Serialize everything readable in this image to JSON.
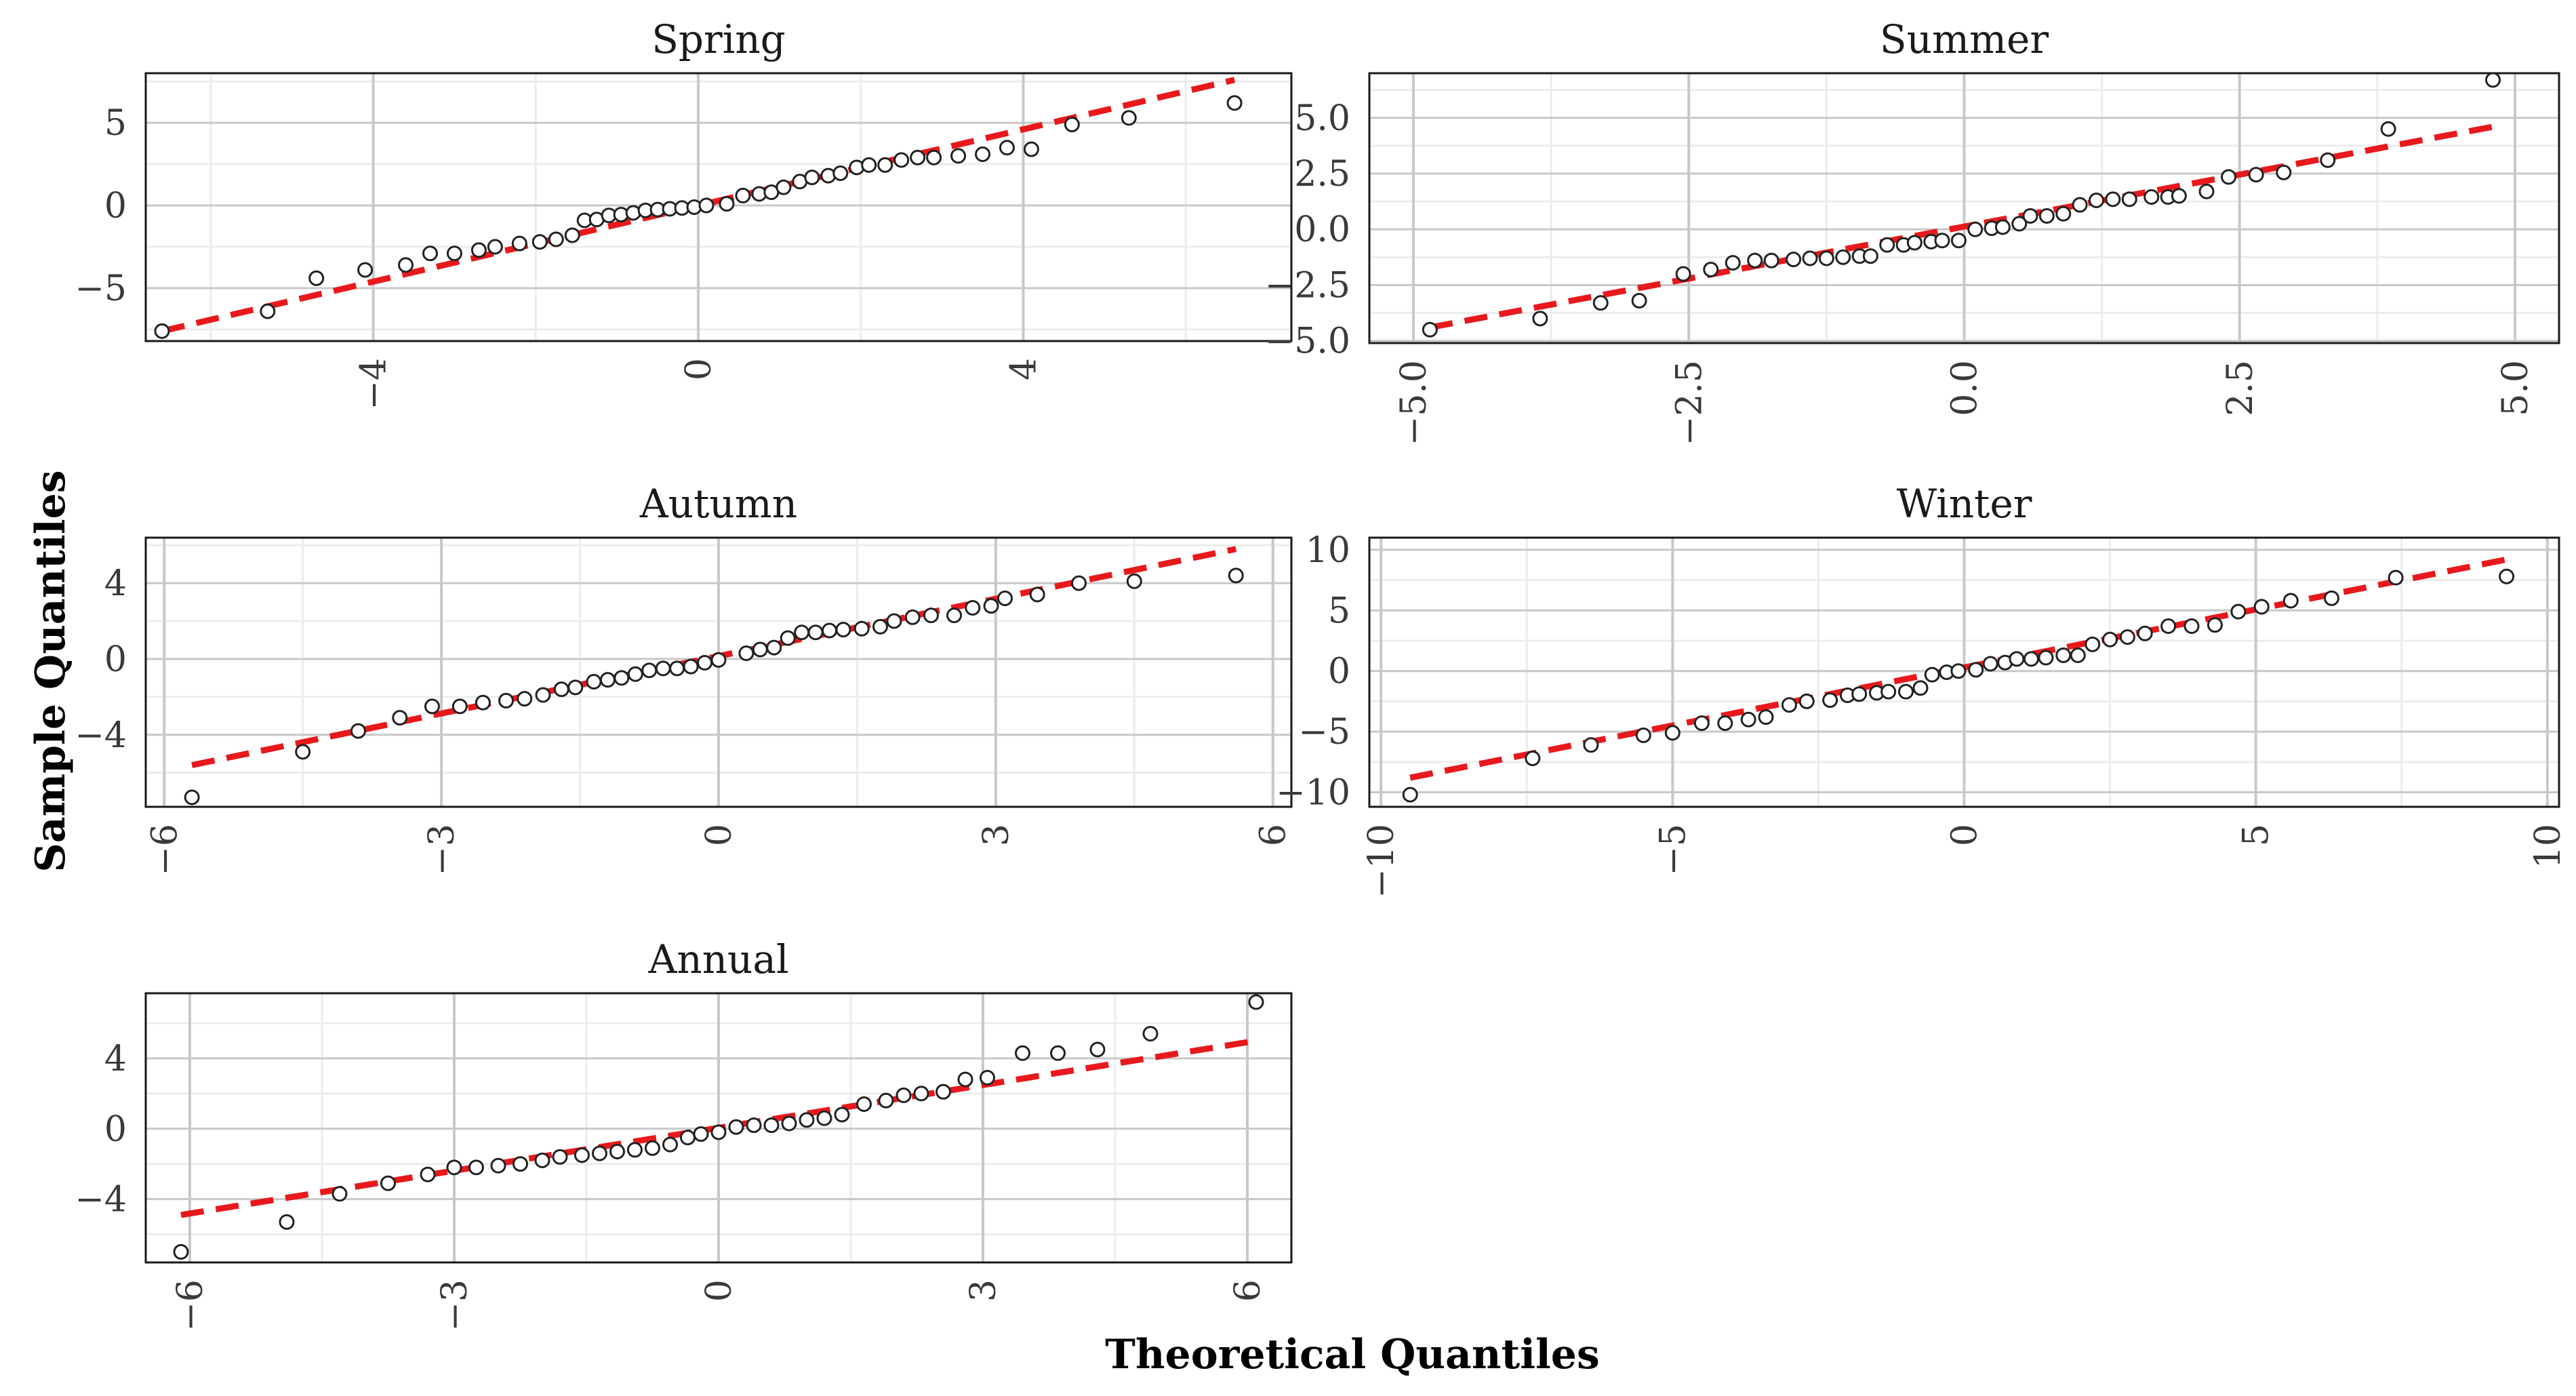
{
  "figure": {
    "ylabel": "Sample Quantiles",
    "xlabel": "Theoretical Quantiles"
  },
  "colors": {
    "ref_line": "#e8191c",
    "point_stroke": "#222222",
    "grid_major": "#c8c8c8",
    "grid_minor": "#ececec",
    "frame": "#1a1a1a"
  },
  "chart_data": [
    {
      "type": "scatter",
      "subtype": "qq-plot",
      "title": "Spring",
      "xlim": [
        -6.8,
        7.3
      ],
      "ylim": [
        -8.2,
        8.0
      ],
      "xticks": [
        -4,
        0,
        4
      ],
      "xtick_labels": [
        "−4",
        "0",
        "4"
      ],
      "yticks": [
        -5,
        0,
        5
      ],
      "ytick_labels": [
        "−5",
        "0",
        "5"
      ],
      "xminor": [
        -6,
        -2,
        2,
        6
      ],
      "yminor": [
        -7.5,
        -2.5,
        2.5,
        7.5
      ],
      "ref_line": [
        [
          -6.6,
          -7.6
        ],
        [
          6.6,
          7.6
        ]
      ],
      "points": [
        [
          -6.6,
          -7.6
        ],
        [
          -5.3,
          -6.4
        ],
        [
          -4.7,
          -4.4
        ],
        [
          -4.1,
          -3.9
        ],
        [
          -3.6,
          -3.6
        ],
        [
          -3.3,
          -2.9
        ],
        [
          -3.0,
          -2.9
        ],
        [
          -2.7,
          -2.7
        ],
        [
          -2.5,
          -2.5
        ],
        [
          -2.2,
          -2.3
        ],
        [
          -1.95,
          -2.2
        ],
        [
          -1.75,
          -2.05
        ],
        [
          -1.55,
          -1.8
        ],
        [
          -1.4,
          -0.9
        ],
        [
          -1.25,
          -0.85
        ],
        [
          -1.1,
          -0.6
        ],
        [
          -0.95,
          -0.55
        ],
        [
          -0.8,
          -0.45
        ],
        [
          -0.65,
          -0.3
        ],
        [
          -0.5,
          -0.25
        ],
        [
          -0.35,
          -0.2
        ],
        [
          -0.2,
          -0.15
        ],
        [
          -0.05,
          -0.1
        ],
        [
          0.1,
          0.0
        ],
        [
          0.35,
          0.1
        ],
        [
          0.55,
          0.6
        ],
        [
          0.75,
          0.7
        ],
        [
          0.9,
          0.8
        ],
        [
          1.05,
          1.1
        ],
        [
          1.25,
          1.45
        ],
        [
          1.4,
          1.7
        ],
        [
          1.6,
          1.8
        ],
        [
          1.75,
          1.95
        ],
        [
          1.95,
          2.3
        ],
        [
          2.1,
          2.45
        ],
        [
          2.3,
          2.45
        ],
        [
          2.5,
          2.75
        ],
        [
          2.7,
          2.9
        ],
        [
          2.9,
          2.9
        ],
        [
          3.2,
          3.0
        ],
        [
          3.5,
          3.1
        ],
        [
          3.8,
          3.5
        ],
        [
          4.1,
          3.4
        ],
        [
          4.6,
          4.9
        ],
        [
          5.3,
          5.3
        ],
        [
          6.6,
          6.2
        ]
      ]
    },
    {
      "type": "scatter",
      "subtype": "qq-plot",
      "title": "Summer",
      "xlim": [
        -5.4,
        5.4
      ],
      "ylim": [
        -5.1,
        7.0
      ],
      "xticks": [
        -5,
        -2.5,
        0,
        2.5,
        5
      ],
      "xtick_labels": [
        "−5.0",
        "−2.5",
        "0.0",
        "2.5",
        "5.0"
      ],
      "yticks": [
        -5,
        -2.5,
        0,
        2.5,
        5
      ],
      "ytick_labels": [
        "−5.0",
        "−2.5",
        "0.0",
        "2.5",
        "5.0"
      ],
      "xminor": [
        -3.75,
        -1.25,
        1.25,
        3.75
      ],
      "yminor": [
        -3.75,
        -1.25,
        1.25,
        3.75,
        6.25
      ],
      "ref_line": [
        [
          -4.85,
          -4.4
        ],
        [
          4.8,
          4.6
        ]
      ],
      "points": [
        [
          -4.85,
          -4.5
        ],
        [
          -3.85,
          -4.0
        ],
        [
          -3.3,
          -3.3
        ],
        [
          -2.95,
          -3.2
        ],
        [
          -2.55,
          -2.0
        ],
        [
          -2.3,
          -1.8
        ],
        [
          -2.1,
          -1.5
        ],
        [
          -1.9,
          -1.4
        ],
        [
          -1.75,
          -1.4
        ],
        [
          -1.55,
          -1.35
        ],
        [
          -1.4,
          -1.3
        ],
        [
          -1.25,
          -1.3
        ],
        [
          -1.1,
          -1.25
        ],
        [
          -0.95,
          -1.2
        ],
        [
          -0.85,
          -1.2
        ],
        [
          -0.7,
          -0.7
        ],
        [
          -0.55,
          -0.7
        ],
        [
          -0.45,
          -0.6
        ],
        [
          -0.3,
          -0.55
        ],
        [
          -0.2,
          -0.5
        ],
        [
          -0.05,
          -0.5
        ],
        [
          0.1,
          0.0
        ],
        [
          0.25,
          0.05
        ],
        [
          0.35,
          0.1
        ],
        [
          0.5,
          0.25
        ],
        [
          0.6,
          0.6
        ],
        [
          0.75,
          0.6
        ],
        [
          0.9,
          0.7
        ],
        [
          1.05,
          1.1
        ],
        [
          1.2,
          1.3
        ],
        [
          1.35,
          1.35
        ],
        [
          1.5,
          1.35
        ],
        [
          1.7,
          1.45
        ],
        [
          1.85,
          1.45
        ],
        [
          1.95,
          1.5
        ],
        [
          2.2,
          1.7
        ],
        [
          2.4,
          2.35
        ],
        [
          2.65,
          2.45
        ],
        [
          2.9,
          2.55
        ],
        [
          3.3,
          3.1
        ],
        [
          3.85,
          4.5
        ],
        [
          4.8,
          6.7
        ]
      ]
    },
    {
      "type": "scatter",
      "subtype": "qq-plot",
      "title": "Autumn",
      "xlim": [
        -6.2,
        6.2
      ],
      "ylim": [
        -7.8,
        6.4
      ],
      "xticks": [
        -6,
        -3,
        0,
        3,
        6
      ],
      "xtick_labels": [
        "−6",
        "−3",
        "0",
        "3",
        "6"
      ],
      "yticks": [
        -4,
        0,
        4
      ],
      "ytick_labels": [
        "−4",
        "0",
        "4"
      ],
      "xminor": [
        -4.5,
        -1.5,
        1.5,
        4.5
      ],
      "yminor": [
        -6,
        -2,
        2,
        6
      ],
      "ref_line": [
        [
          -5.7,
          -5.6
        ],
        [
          5.6,
          5.8
        ]
      ],
      "points": [
        [
          -5.7,
          -7.3
        ],
        [
          -4.5,
          -4.9
        ],
        [
          -3.9,
          -3.8
        ],
        [
          -3.45,
          -3.1
        ],
        [
          -3.1,
          -2.5
        ],
        [
          -2.8,
          -2.5
        ],
        [
          -2.55,
          -2.3
        ],
        [
          -2.3,
          -2.2
        ],
        [
          -2.1,
          -2.1
        ],
        [
          -1.9,
          -1.9
        ],
        [
          -1.7,
          -1.6
        ],
        [
          -1.55,
          -1.5
        ],
        [
          -1.35,
          -1.2
        ],
        [
          -1.2,
          -1.1
        ],
        [
          -1.05,
          -1.0
        ],
        [
          -0.9,
          -0.8
        ],
        [
          -0.75,
          -0.6
        ],
        [
          -0.6,
          -0.5
        ],
        [
          -0.45,
          -0.5
        ],
        [
          -0.3,
          -0.4
        ],
        [
          -0.15,
          -0.2
        ],
        [
          0.0,
          -0.05
        ],
        [
          0.3,
          0.3
        ],
        [
          0.45,
          0.5
        ],
        [
          0.6,
          0.6
        ],
        [
          0.75,
          1.1
        ],
        [
          0.9,
          1.4
        ],
        [
          1.05,
          1.4
        ],
        [
          1.2,
          1.5
        ],
        [
          1.35,
          1.55
        ],
        [
          1.55,
          1.6
        ],
        [
          1.75,
          1.7
        ],
        [
          1.9,
          2.0
        ],
        [
          2.1,
          2.2
        ],
        [
          2.3,
          2.3
        ],
        [
          2.55,
          2.3
        ],
        [
          2.75,
          2.7
        ],
        [
          2.95,
          2.8
        ],
        [
          3.1,
          3.2
        ],
        [
          3.45,
          3.4
        ],
        [
          3.9,
          4.0
        ],
        [
          4.5,
          4.1
        ],
        [
          5.6,
          4.4
        ]
      ]
    },
    {
      "type": "scatter",
      "subtype": "qq-plot",
      "title": "Winter",
      "xlim": [
        -10.2,
        10.2
      ],
      "ylim": [
        -11.2,
        11.0
      ],
      "xticks": [
        -10,
        -5,
        0,
        5,
        10
      ],
      "xtick_labels": [
        "−10",
        "−5",
        "0",
        "5",
        "10"
      ],
      "yticks": [
        -10,
        -5,
        0,
        5,
        10
      ],
      "ytick_labels": [
        "−10",
        "−5",
        "0",
        "5",
        "10"
      ],
      "xminor": [
        -7.5,
        -2.5,
        2.5,
        7.5
      ],
      "yminor": [
        -7.5,
        -2.5,
        2.5,
        7.5
      ],
      "ref_line": [
        [
          -9.5,
          -8.8
        ],
        [
          9.3,
          9.2
        ]
      ],
      "points": [
        [
          -9.5,
          -10.2
        ],
        [
          -7.4,
          -7.2
        ],
        [
          -6.4,
          -6.1
        ],
        [
          -5.5,
          -5.3
        ],
        [
          -5.0,
          -5.1
        ],
        [
          -4.5,
          -4.3
        ],
        [
          -4.1,
          -4.3
        ],
        [
          -3.7,
          -4.0
        ],
        [
          -3.4,
          -3.8
        ],
        [
          -3.0,
          -2.8
        ],
        [
          -2.7,
          -2.5
        ],
        [
          -2.3,
          -2.4
        ],
        [
          -2.0,
          -2.0
        ],
        [
          -1.8,
          -1.9
        ],
        [
          -1.5,
          -1.8
        ],
        [
          -1.3,
          -1.7
        ],
        [
          -1.0,
          -1.7
        ],
        [
          -0.75,
          -1.4
        ],
        [
          -0.55,
          -0.3
        ],
        [
          -0.3,
          -0.1
        ],
        [
          -0.1,
          0.0
        ],
        [
          0.2,
          0.1
        ],
        [
          0.45,
          0.6
        ],
        [
          0.7,
          0.7
        ],
        [
          0.9,
          1.0
        ],
        [
          1.15,
          1.0
        ],
        [
          1.4,
          1.1
        ],
        [
          1.7,
          1.3
        ],
        [
          1.95,
          1.3
        ],
        [
          2.2,
          2.2
        ],
        [
          2.5,
          2.6
        ],
        [
          2.8,
          2.8
        ],
        [
          3.1,
          3.1
        ],
        [
          3.5,
          3.7
        ],
        [
          3.9,
          3.7
        ],
        [
          4.3,
          3.8
        ],
        [
          4.7,
          4.9
        ],
        [
          5.1,
          5.3
        ],
        [
          5.6,
          5.8
        ],
        [
          6.3,
          6.0
        ],
        [
          7.4,
          7.7
        ],
        [
          9.3,
          7.8
        ]
      ]
    },
    {
      "type": "scatter",
      "subtype": "qq-plot",
      "title": "Annual",
      "xlim": [
        -6.5,
        6.5
      ],
      "ylim": [
        -7.6,
        7.7
      ],
      "xticks": [
        -6,
        -3,
        0,
        3,
        6
      ],
      "xtick_labels": [
        "−6",
        "−3",
        "0",
        "3",
        "6"
      ],
      "yticks": [
        -4,
        0,
        4
      ],
      "ytick_labels": [
        "−4",
        "0",
        "4"
      ],
      "xminor": [
        -4.5,
        -1.5,
        1.5,
        4.5
      ],
      "yminor": [
        -6,
        -2,
        2,
        6
      ],
      "ref_line": [
        [
          -6.1,
          -4.9
        ],
        [
          6.1,
          5.0
        ]
      ],
      "points": [
        [
          -6.1,
          -7.0
        ],
        [
          -4.9,
          -5.3
        ],
        [
          -4.3,
          -3.7
        ],
        [
          -3.75,
          -3.1
        ],
        [
          -3.3,
          -2.6
        ],
        [
          -3.0,
          -2.2
        ],
        [
          -2.75,
          -2.2
        ],
        [
          -2.5,
          -2.1
        ],
        [
          -2.25,
          -2.0
        ],
        [
          -2.0,
          -1.8
        ],
        [
          -1.8,
          -1.6
        ],
        [
          -1.55,
          -1.5
        ],
        [
          -1.35,
          -1.4
        ],
        [
          -1.15,
          -1.3
        ],
        [
          -0.95,
          -1.2
        ],
        [
          -0.75,
          -1.1
        ],
        [
          -0.55,
          -0.9
        ],
        [
          -0.35,
          -0.5
        ],
        [
          -0.2,
          -0.3
        ],
        [
          0.0,
          -0.2
        ],
        [
          0.2,
          0.1
        ],
        [
          0.4,
          0.2
        ],
        [
          0.6,
          0.2
        ],
        [
          0.8,
          0.3
        ],
        [
          1.0,
          0.5
        ],
        [
          1.2,
          0.6
        ],
        [
          1.4,
          0.8
        ],
        [
          1.65,
          1.4
        ],
        [
          1.9,
          1.6
        ],
        [
          2.1,
          1.9
        ],
        [
          2.3,
          2.0
        ],
        [
          2.55,
          2.1
        ],
        [
          2.8,
          2.8
        ],
        [
          3.05,
          2.9
        ],
        [
          3.45,
          4.3
        ],
        [
          3.85,
          4.3
        ],
        [
          4.3,
          4.5
        ],
        [
          4.9,
          5.4
        ],
        [
          6.1,
          7.2
        ]
      ]
    }
  ]
}
